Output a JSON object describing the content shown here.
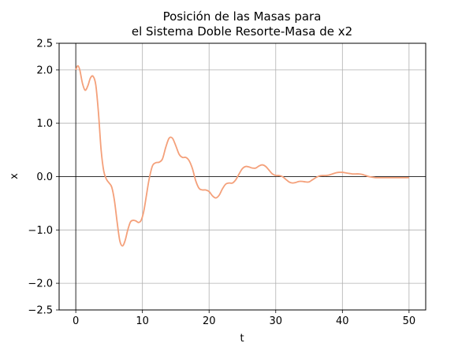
{
  "chart_data": {
    "type": "line",
    "title_lines": [
      "Posición de las Masas para",
      "el Sistema Doble Resorte-Masa de x2"
    ],
    "xlabel": "t",
    "ylabel": "x",
    "xlim": [
      -2.5,
      52.5
    ],
    "ylim": [
      -2.5,
      2.5
    ],
    "xticks": [
      0,
      10,
      20,
      30,
      40,
      50
    ],
    "xtick_labels": [
      "0",
      "10",
      "20",
      "30",
      "40",
      "50"
    ],
    "yticks": [
      -2.5,
      -2.0,
      -1.0,
      0.0,
      1.0,
      2.0,
      2.5
    ],
    "ytick_labels": [
      "−2.5",
      "−2.0",
      "−1.0",
      "0.0",
      "1.0",
      "2.0",
      "2.5"
    ],
    "grid": true,
    "reference_lines": {
      "x": 0,
      "y": 0
    },
    "colors": {
      "line": "#f4a07a",
      "grid": "#b0b0b0",
      "axis": "#000000"
    },
    "series": [
      {
        "x": [
          0,
          0.3,
          0.6,
          1.0,
          1.4,
          1.8,
          2.2,
          2.6,
          3.0,
          3.4,
          3.8,
          4.2,
          4.6,
          5.0,
          5.4,
          5.8,
          6.2,
          6.6,
          7.0,
          7.4,
          7.8,
          8.2,
          8.6,
          9.0,
          9.4,
          9.8,
          10.2,
          10.6,
          11.0,
          11.5,
          12.0,
          12.5,
          13.0,
          13.5,
          14.0,
          14.5,
          15.0,
          15.5,
          16.0,
          16.5,
          17.0,
          17.5,
          18.0,
          18.5,
          19.0,
          19.5,
          20.0,
          20.5,
          21.0,
          21.5,
          22.0,
          22.5,
          23.0,
          23.5,
          24.0,
          24.5,
          25.0,
          25.5,
          26.0,
          26.5,
          27.0,
          27.5,
          28.0,
          28.5,
          29.0,
          29.5,
          30.0,
          30.5,
          31.0,
          31.5,
          32.0,
          32.5,
          33.0,
          33.5,
          34.0,
          34.5,
          35.0,
          35.5,
          36.0,
          36.5,
          37.0,
          37.5,
          38.0,
          38.5,
          39.0,
          39.5,
          40.0,
          40.5,
          41.0,
          41.5,
          42.0,
          42.5,
          43.0,
          43.5,
          44.0,
          44.5,
          45.0,
          45.5,
          46.0,
          46.5,
          47.0,
          47.5,
          48.0,
          48.5,
          49.0,
          49.5,
          50.0
        ],
        "y": [
          2.0,
          2.08,
          2.0,
          1.75,
          1.62,
          1.7,
          1.85,
          1.88,
          1.72,
          1.2,
          0.5,
          0.1,
          -0.05,
          -0.12,
          -0.2,
          -0.45,
          -0.85,
          -1.2,
          -1.3,
          -1.2,
          -1.0,
          -0.85,
          -0.82,
          -0.83,
          -0.86,
          -0.82,
          -0.65,
          -0.35,
          -0.05,
          0.2,
          0.26,
          0.27,
          0.33,
          0.55,
          0.72,
          0.72,
          0.58,
          0.42,
          0.36,
          0.36,
          0.3,
          0.15,
          -0.08,
          -0.22,
          -0.25,
          -0.25,
          -0.28,
          -0.36,
          -0.4,
          -0.35,
          -0.23,
          -0.14,
          -0.12,
          -0.12,
          -0.06,
          0.05,
          0.15,
          0.19,
          0.18,
          0.16,
          0.16,
          0.2,
          0.22,
          0.19,
          0.12,
          0.05,
          0.02,
          0.02,
          0.0,
          -0.05,
          -0.1,
          -0.12,
          -0.11,
          -0.09,
          -0.09,
          -0.1,
          -0.1,
          -0.06,
          -0.02,
          0.01,
          0.02,
          0.02,
          0.03,
          0.05,
          0.07,
          0.08,
          0.08,
          0.07,
          0.06,
          0.05,
          0.05,
          0.05,
          0.04,
          0.02,
          0.0,
          -0.01,
          -0.02,
          -0.02,
          -0.02,
          -0.02,
          -0.02,
          -0.02,
          -0.02,
          -0.02,
          -0.02,
          -0.02,
          -0.02
        ]
      }
    ]
  }
}
